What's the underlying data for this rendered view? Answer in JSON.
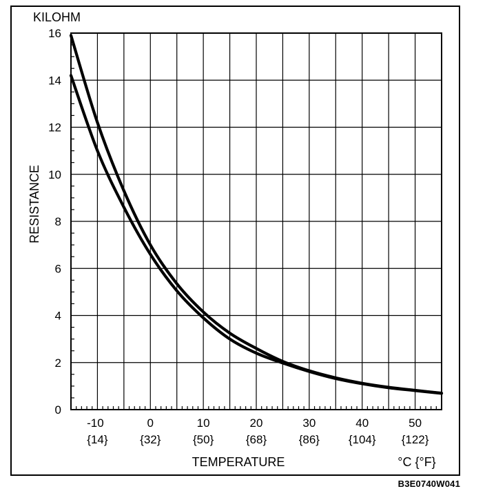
{
  "chart_data": {
    "type": "line",
    "y_unit_label": "KILOHM",
    "ylabel": "RESISTANCE",
    "xlabel": "TEMPERATURE",
    "x_unit_label": "°C {°F}",
    "xlim": [
      -15,
      55
    ],
    "ylim": [
      0,
      16
    ],
    "grid": true,
    "x_ticks": [
      {
        "c": "-10",
        "f": "{14}"
      },
      {
        "c": "0",
        "f": "{32}"
      },
      {
        "c": "10",
        "f": "{50}"
      },
      {
        "c": "20",
        "f": "{68}"
      },
      {
        "c": "30",
        "f": "{86}"
      },
      {
        "c": "40",
        "f": "{104}"
      },
      {
        "c": "50",
        "f": "{122}"
      }
    ],
    "x_tick_values": [
      -10,
      0,
      10,
      20,
      30,
      40,
      50
    ],
    "y_ticks": [
      "0",
      "2",
      "4",
      "6",
      "8",
      "10",
      "12",
      "14",
      "16"
    ],
    "y_tick_values": [
      0,
      2,
      4,
      6,
      8,
      10,
      12,
      14,
      16
    ],
    "series": [
      {
        "x": [
          -15,
          -10,
          -5,
          0,
          5,
          10,
          15,
          20,
          25,
          30,
          35,
          40,
          45,
          50,
          55
        ],
        "y": [
          15.9,
          12.2,
          9.3,
          7.0,
          5.35,
          4.15,
          3.25,
          2.6,
          2.05,
          1.65,
          1.35,
          1.12,
          0.95,
          0.82,
          0.7
        ]
      },
      {
        "x": [
          -15,
          -10,
          -5,
          0,
          5,
          10,
          15,
          20,
          25,
          30,
          35,
          40,
          45,
          50,
          55
        ],
        "y": [
          14.2,
          11.0,
          8.6,
          6.6,
          5.05,
          3.9,
          3.0,
          2.4,
          1.98,
          1.62,
          1.32,
          1.1,
          0.93,
          0.81,
          0.69
        ]
      }
    ],
    "line_color": "#000000"
  },
  "figure_code": "B3E0740W041"
}
